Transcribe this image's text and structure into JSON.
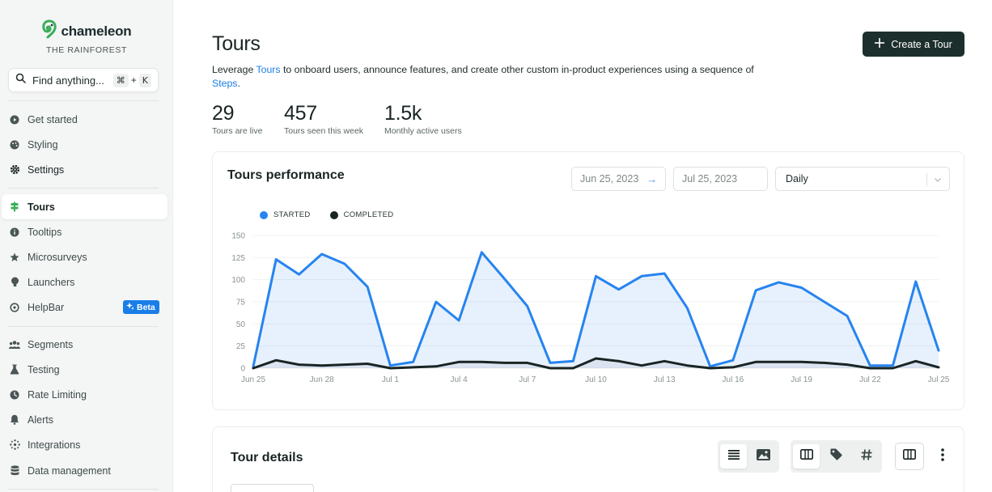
{
  "app": {
    "brand": "chameleon",
    "workspace": "THE RAINFOREST"
  },
  "search": {
    "label": "Find anything...",
    "shortcut_mod": "⌘",
    "shortcut_plus": "+",
    "shortcut_key": "K"
  },
  "sidebar": {
    "items": [
      {
        "label": "Get started",
        "icon": "play-circle-icon"
      },
      {
        "label": "Styling",
        "icon": "palette-icon"
      },
      {
        "label": "Settings",
        "icon": "gear-icon"
      },
      {
        "label": "Tours",
        "icon": "tours-icon"
      },
      {
        "label": "Tooltips",
        "icon": "info-icon"
      },
      {
        "label": "Microsurveys",
        "icon": "star-icon"
      },
      {
        "label": "Launchers",
        "icon": "bulb-icon"
      },
      {
        "label": "HelpBar",
        "icon": "helpbar-icon",
        "badge": "Beta"
      },
      {
        "label": "Segments",
        "icon": "people-icon"
      },
      {
        "label": "Testing",
        "icon": "flask-icon"
      },
      {
        "label": "Rate Limiting",
        "icon": "clock-icon"
      },
      {
        "label": "Alerts",
        "icon": "bell-icon"
      },
      {
        "label": "Integrations",
        "icon": "integrations-icon"
      },
      {
        "label": "Data management",
        "icon": "database-icon"
      }
    ]
  },
  "page": {
    "title": "Tours",
    "create_button": "Create a Tour",
    "desc_pre": "Leverage ",
    "desc_link1": "Tours",
    "desc_mid": " to onboard users, announce features, and create other custom in-product experiences using a sequence of ",
    "desc_link2": "Steps",
    "desc_post": "."
  },
  "stats": [
    {
      "value": "29",
      "label": "Tours are live"
    },
    {
      "value": "457",
      "label": "Tours seen this week"
    },
    {
      "value": "1.5k",
      "label": "Monthly active users"
    }
  ],
  "performance": {
    "title": "Tours performance",
    "date_from": "Jun 25, 2023",
    "date_arrow": "→",
    "date_to": "Jul 25, 2023",
    "interval": "Daily"
  },
  "chart_data": {
    "type": "area",
    "title": "",
    "xlabel": "",
    "ylabel": "",
    "ylim": [
      0,
      150
    ],
    "yticks": [
      0,
      25,
      50,
      75,
      100,
      125,
      150
    ],
    "x": [
      "Jun 25",
      "Jun 26",
      "Jun 27",
      "Jun 28",
      "Jun 29",
      "Jun 30",
      "Jul 1",
      "Jul 2",
      "Jul 3",
      "Jul 4",
      "Jul 5",
      "Jul 6",
      "Jul 7",
      "Jul 8",
      "Jul 9",
      "Jul 10",
      "Jul 11",
      "Jul 12",
      "Jul 13",
      "Jul 14",
      "Jul 15",
      "Jul 16",
      "Jul 17",
      "Jul 18",
      "Jul 19",
      "Jul 20",
      "Jul 21",
      "Jul 22",
      "Jul 23",
      "Jul 24",
      "Jul 25"
    ],
    "xtick_labels": [
      "Jun 25",
      "Jun 28",
      "Jul 1",
      "Jul 4",
      "Jul 7",
      "Jul 10",
      "Jul 13",
      "Jul 16",
      "Jul 19",
      "Jul 22",
      "Jul 25"
    ],
    "grid": true,
    "legend_position": "top-left",
    "series": [
      {
        "name": "STARTED",
        "color": "#2684f0",
        "values": [
          2,
          123,
          106,
          129,
          118,
          92,
          3,
          7,
          75,
          54,
          131,
          101,
          70,
          6,
          8,
          104,
          89,
          104,
          107,
          68,
          2,
          9,
          88,
          97,
          91,
          75,
          59,
          3,
          3,
          98,
          20
        ]
      },
      {
        "name": "COMPLETED",
        "color": "#1a2424",
        "values": [
          0,
          9,
          4,
          3,
          4,
          5,
          0,
          1,
          2,
          7,
          7,
          6,
          6,
          0,
          0,
          11,
          8,
          3,
          8,
          3,
          0,
          1,
          7,
          7,
          7,
          6,
          4,
          0,
          0,
          8,
          1
        ]
      }
    ]
  },
  "details": {
    "title": "Tour details"
  },
  "colors": {
    "accent": "#1a7ee8",
    "primary_button": "#1d2f2c",
    "brand_green": "#3aae5c"
  }
}
